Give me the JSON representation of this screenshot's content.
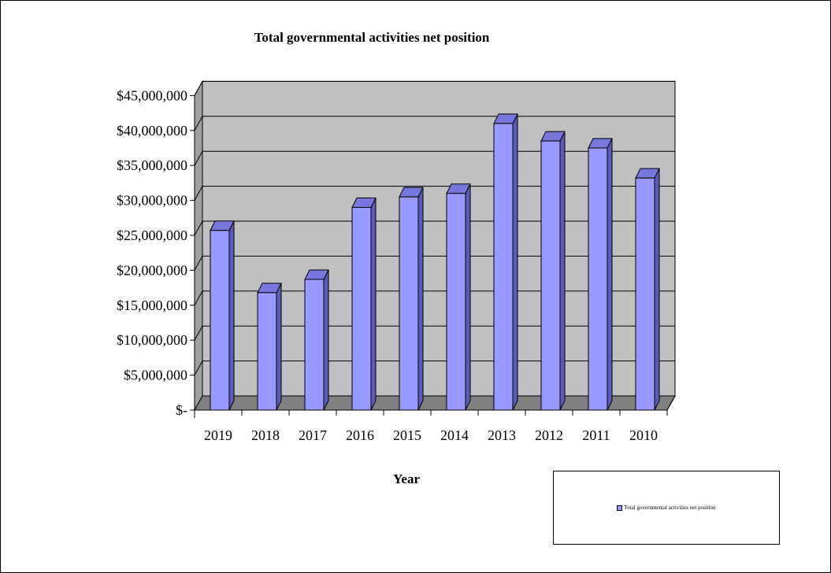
{
  "chart_data": {
    "type": "bar",
    "title": "Total governmental activities net position",
    "xlabel": "Year",
    "ylabel": "",
    "categories": [
      "2019",
      "2018",
      "2017",
      "2016",
      "2015",
      "2014",
      "2013",
      "2012",
      "2011",
      "2010"
    ],
    "series": [
      {
        "name": "Total governmental activities net position",
        "values": [
          25700000,
          16800000,
          18700000,
          29000000,
          30500000,
          31000000,
          41000000,
          38500000,
          37500000,
          33200000
        ]
      }
    ],
    "ylim": [
      0,
      45000000
    ],
    "y_ticks": [
      "$-",
      "$5,000,000",
      "$10,000,000",
      "$15,000,000",
      "$20,000,000",
      "$25,000,000",
      "$30,000,000",
      "$35,000,000",
      "$40,000,000",
      "$45,000,000"
    ],
    "grid": true,
    "legend_position": "bottom-right",
    "colors": {
      "bar_front": "#9999ff",
      "bar_top": "#7777dd",
      "bar_side": "#5c5cb8",
      "back_wall": "#c0c0c0",
      "floor": "#808080",
      "side_wall": "#a0a0a0"
    }
  }
}
